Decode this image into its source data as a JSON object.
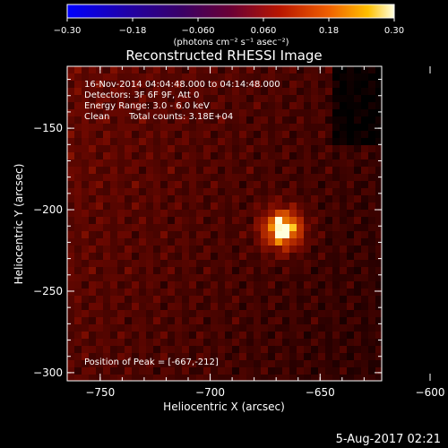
{
  "chart_data": {
    "type": "heatmap",
    "title": "Reconstructed RHESSI Image",
    "xlabel": "Heliocentric X (arcsec)",
    "ylabel": "Heliocentric Y (arcsec)",
    "xlim": [
      -765,
      -622
    ],
    "ylim": [
      -305,
      -112
    ],
    "x_ticks": [
      -750,
      -700,
      -650,
      -600
    ],
    "x_tick_labels": [
      "−750",
      "−700",
      "−650",
      "−600"
    ],
    "y_ticks": [
      -150,
      -200,
      -250,
      -300
    ],
    "y_tick_labels": [
      "−150",
      "−200",
      "−250",
      "−300"
    ],
    "colorbar": {
      "min": -0.3,
      "max": 0.3,
      "ticks": [
        -0.3,
        -0.18,
        -0.06,
        0.06,
        0.18,
        0.3
      ],
      "tick_labels": [
        "−0.30",
        "−0.18",
        "−0.060",
        "0.060",
        "0.18",
        "0.30"
      ],
      "unit_label": "(photons cm⁻² s⁻¹ asec⁻²)"
    },
    "annotations": {
      "time_range": "16-Nov-2014 04:04:48.000 to 04:14:48.000",
      "detectors": "Detectors: 3F 6F 9F, Att 0",
      "energy": "Energy Range: 3.0 - 6.0 keV",
      "method": "Clean",
      "counts": "Total counts: 3.18E+04",
      "peak": "Position of Peak = [-667,-212]"
    },
    "peak": {
      "x": -667,
      "y": -212,
      "value": 0.3
    },
    "background_level": 0.1,
    "colors": {
      "background": "#000000",
      "text": "#ffffff"
    }
  },
  "footer": {
    "date": "5-Aug-2017 02:21"
  }
}
